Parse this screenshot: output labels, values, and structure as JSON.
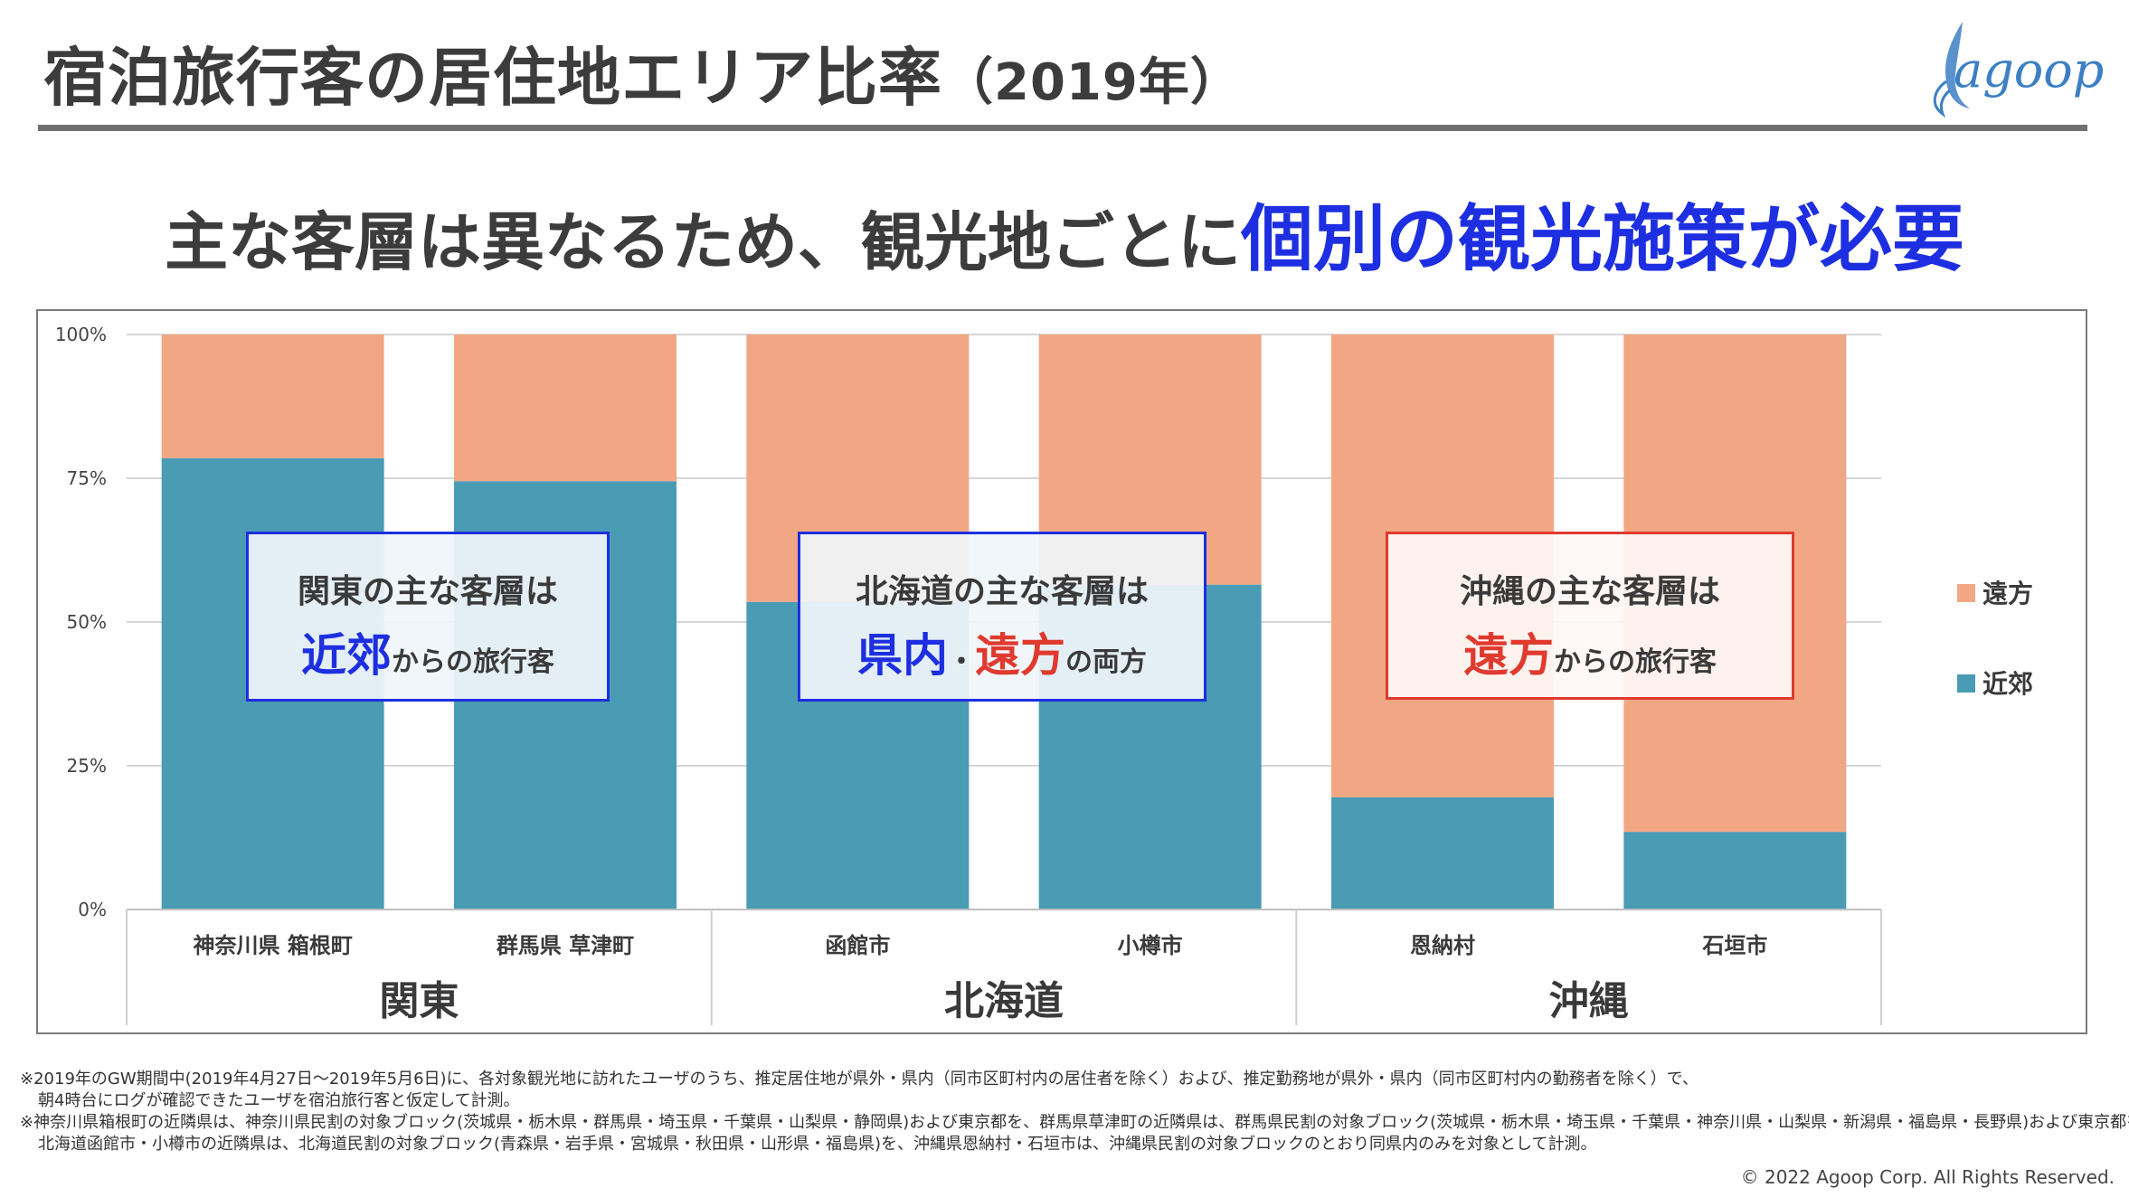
{
  "title": {
    "main": "宿泊旅行客の居住地エリア比率",
    "year": "（2019年）"
  },
  "logo": {
    "text": "agoop"
  },
  "headline": {
    "plain": "主な客層は異なるため、観光地ごとに",
    "accent": "個別の観光施策が必要"
  },
  "colors": {
    "near": "#4a9bb4",
    "far": "#f2a784",
    "blue": "#1d2fe0",
    "red": "#e03a2f"
  },
  "chart_data": {
    "type": "bar",
    "stacked": true,
    "title": "宿泊旅行客の居住地エリア比率（2019年）",
    "ylim": [
      0,
      100
    ],
    "yticks": [
      "0%",
      "25%",
      "50%",
      "75%",
      "100%"
    ],
    "ytick_values": [
      0,
      25,
      50,
      75,
      100
    ],
    "categories": [
      "神奈川県 箱根町",
      "群馬県 草津町",
      "函館市",
      "小樽市",
      "恩納村",
      "石垣市"
    ],
    "groups": [
      {
        "label": "関東",
        "categories": [
          "神奈川県 箱根町",
          "群馬県 草津町"
        ]
      },
      {
        "label": "北海道",
        "categories": [
          "函館市",
          "小樽市"
        ]
      },
      {
        "label": "沖縄",
        "categories": [
          "恩納村",
          "石垣市"
        ]
      }
    ],
    "series": [
      {
        "name": "近郊",
        "values": [
          78.5,
          74.5,
          53.5,
          56.5,
          19.5,
          13.5
        ]
      },
      {
        "name": "遠方",
        "values": [
          21.5,
          25.5,
          46.5,
          43.5,
          80.5,
          86.5
        ]
      }
    ],
    "legend": [
      "遠方",
      "近郊"
    ],
    "legend_position": "right"
  },
  "callouts": {
    "kanto": {
      "line1": "関東の主な客層は",
      "big": "近郊",
      "rest": "からの旅行客"
    },
    "hokkaido": {
      "line1": "北海道の主な客層は",
      "big1": "県内",
      "sep": "・",
      "big2": "遠方",
      "rest": "の両方"
    },
    "okinawa": {
      "line1": "沖縄の主な客層は",
      "big": "遠方",
      "rest": "からの旅行客"
    }
  },
  "notes": [
    "※2019年のGW期間中(2019年4月27日～2019年5月6日)に、各対象観光地に訪れたユーザのうち、推定居住地が県外・県内（同市区町村内の居住者を除く）および、推定勤務地が県外・県内（同市区町村内の勤務者を除く）で、",
    "朝4時台にログが確認できたユーザを宿泊旅行客と仮定して計測。",
    "※神奈川県箱根町の近隣県は、神奈川県民割の対象ブロック(茨城県・栃木県・群馬県・埼玉県・千葉県・山梨県・静岡県)および東京都を、群馬県草津町の近隣県は、群馬県民割の対象ブロック(茨城県・栃木県・埼玉県・千葉県・神奈川県・山梨県・新潟県・福島県・長野県)および東京都を、",
    "北海道函館市・小樽市の近隣県は、北海道民割の対象ブロック(青森県・岩手県・宮城県・秋田県・山形県・福島県)を、沖縄県恩納村・石垣市は、沖縄県民割の対象ブロックのとおり同県内のみを対象として計測。"
  ],
  "copyright": "© 2022 Agoop Corp. All Rights Reserved."
}
